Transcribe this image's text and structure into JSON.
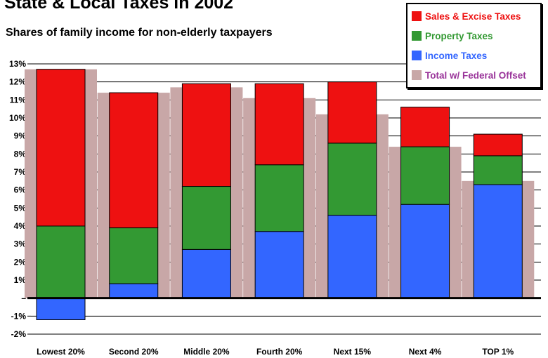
{
  "chart_data": {
    "type": "bar",
    "title": "State & Local Taxes in 2002",
    "subtitle": "Shares of family income for non-elderly taxpayers",
    "xlabel": "",
    "ylabel": "",
    "ylim": [
      -2,
      13
    ],
    "yticks": [
      "-2%",
      "-1%",
      "–",
      "1%",
      "2%",
      "3%",
      "4%",
      "5%",
      "6%",
      "7%",
      "8%",
      "9%",
      "10%",
      "11%",
      "12%",
      "13%"
    ],
    "categories": [
      "Lowest 20%",
      "Second 20%",
      "Middle 20%",
      "Fourth 20%",
      "Next 15%",
      "Next 4%",
      "TOP 1%"
    ],
    "stacked": true,
    "series": [
      {
        "name": "Income Taxes",
        "color": "#3366ff",
        "values": [
          -1.2,
          0.8,
          2.7,
          3.7,
          4.6,
          5.2,
          6.3
        ]
      },
      {
        "name": "Property Taxes",
        "color": "#339933",
        "values": [
          4.0,
          3.1,
          3.5,
          3.7,
          4.0,
          3.2,
          1.6
        ]
      },
      {
        "name": "Sales & Excise Taxes",
        "color": "#ee1111",
        "values": [
          8.7,
          7.5,
          5.7,
          4.5,
          3.4,
          2.2,
          1.2
        ]
      }
    ],
    "overlay_series": {
      "name": "Total w/ Federal Offset",
      "color": "#c8a7a7",
      "values": [
        12.7,
        11.4,
        11.7,
        11.1,
        10.2,
        8.4,
        6.5
      ]
    },
    "legend": {
      "placement": "top-right",
      "items": [
        {
          "label": "Sales & Excise Taxes",
          "color": "#ee1111",
          "text_color": "#ee1111"
        },
        {
          "label": "Property Taxes",
          "color": "#339933",
          "text_color": "#339933"
        },
        {
          "label": "Income Taxes",
          "color": "#3366ff",
          "text_color": "#3366ff"
        },
        {
          "label": "Total w/ Federal Offset",
          "color": "#c8a7a7",
          "text_color": "#993399"
        }
      ]
    },
    "grid": true
  }
}
